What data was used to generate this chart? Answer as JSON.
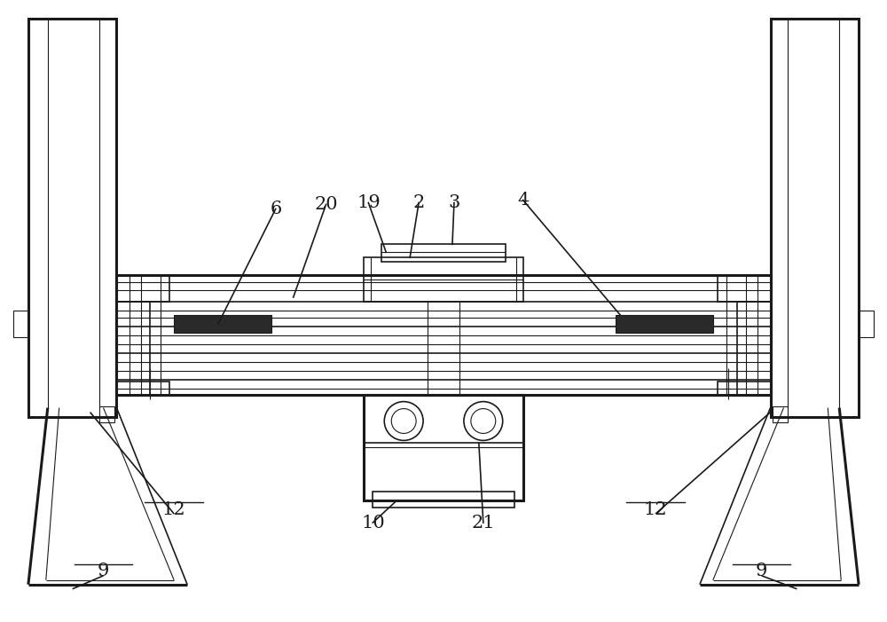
{
  "bg_color": "#ffffff",
  "line_color": "#1a1a1a",
  "lw_main": 1.5,
  "lw_thin": 0.8,
  "lw_thick": 2.2,
  "lw_med": 1.2,
  "fig_w": 10.0,
  "fig_h": 7.01,
  "dpi": 100
}
